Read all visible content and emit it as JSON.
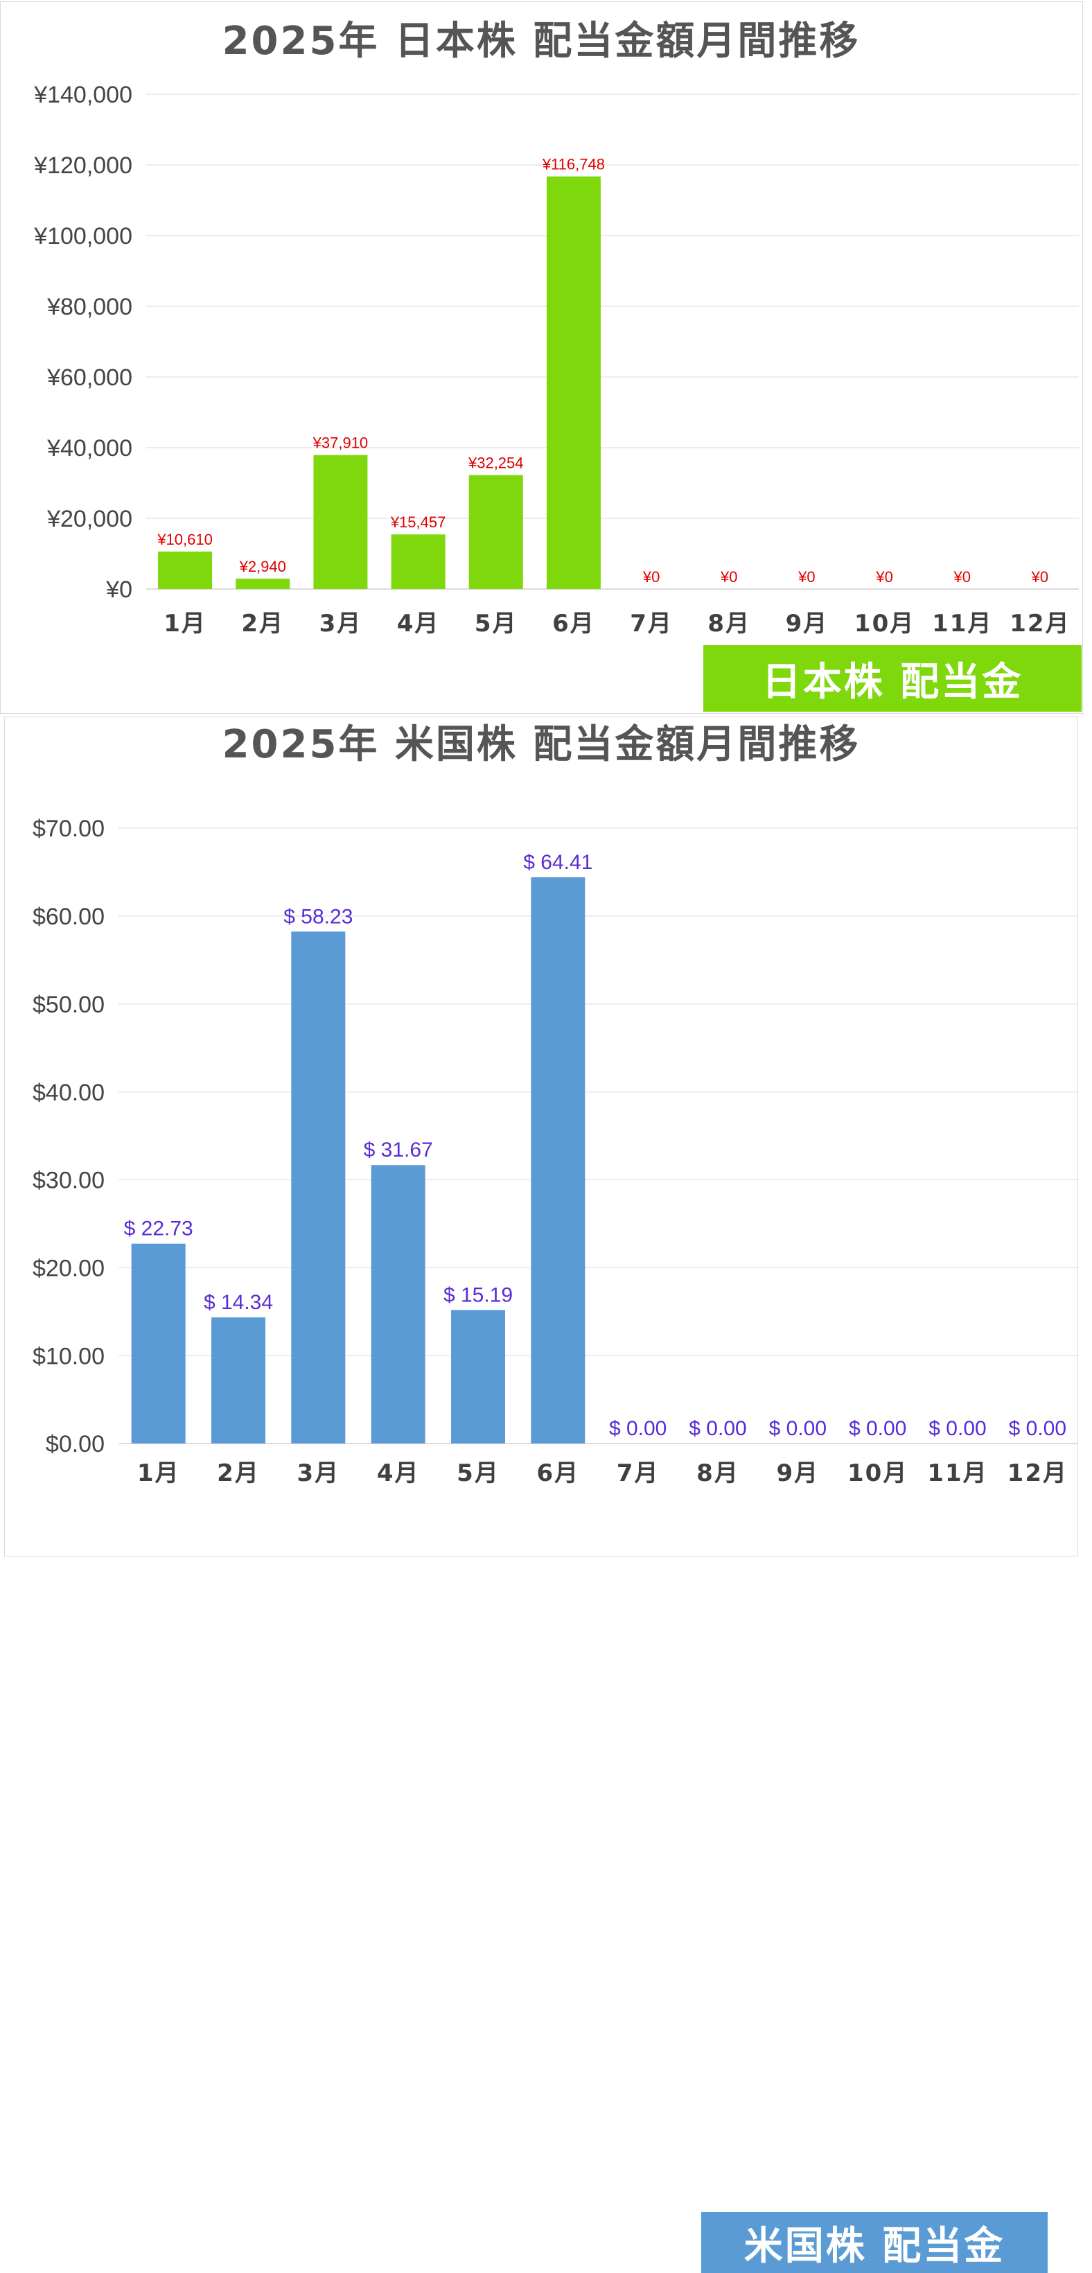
{
  "jp_chart": {
    "title": "2025年 日本株 配当金額月間推移",
    "banner": "日本株 配当金",
    "colors": {
      "bar": "#7ed80b",
      "label": "#e00000",
      "grid": "#e6e6e6"
    },
    "chart_data": {
      "type": "bar",
      "categories": [
        "1月",
        "2月",
        "3月",
        "4月",
        "5月",
        "6月",
        "7月",
        "8月",
        "9月",
        "10月",
        "11月",
        "12月"
      ],
      "values": [
        10610,
        2940,
        37910,
        15457,
        32254,
        116748,
        0,
        0,
        0,
        0,
        0,
        0
      ],
      "data_labels": [
        "¥10,610",
        "¥2,940",
        "¥37,910",
        "¥15,457",
        "¥32,254",
        "¥116,748",
        "¥0",
        "¥0",
        "¥0",
        "¥0",
        "¥0",
        "¥0"
      ],
      "yticks": [
        0,
        20000,
        40000,
        60000,
        80000,
        100000,
        120000,
        140000
      ],
      "ytick_labels": [
        "¥0",
        "¥20,000",
        "¥40,000",
        "¥60,000",
        "¥80,000",
        "¥100,000",
        "¥120,000",
        "¥140,000"
      ],
      "ylim": [
        0,
        140000
      ],
      "grid": true
    }
  },
  "us_chart": {
    "title": "2025年 米国株 配当金額月間推移",
    "banner": "米国株 配当金",
    "colors": {
      "bar": "#5b9bd5",
      "label": "#5a2bd6",
      "grid": "#e6e6e6"
    },
    "chart_data": {
      "type": "bar",
      "categories": [
        "1月",
        "2月",
        "3月",
        "4月",
        "5月",
        "6月",
        "7月",
        "8月",
        "9月",
        "10月",
        "11月",
        "12月"
      ],
      "values": [
        22.73,
        14.34,
        58.23,
        31.67,
        15.19,
        64.41,
        0,
        0,
        0,
        0,
        0,
        0
      ],
      "data_labels": [
        "$ 22.73",
        "$ 14.34",
        "$ 58.23",
        "$ 31.67",
        "$ 15.19",
        "$ 64.41",
        "$ 0.00",
        "$ 0.00",
        "$ 0.00",
        "$ 0.00",
        "$ 0.00",
        "$ 0.00"
      ],
      "yticks": [
        0,
        10,
        20,
        30,
        40,
        50,
        60,
        70
      ],
      "ytick_labels": [
        "$0.00",
        "$10.00",
        "$20.00",
        "$30.00",
        "$40.00",
        "$50.00",
        "$60.00",
        "$70.00"
      ],
      "ylim": [
        0,
        70
      ],
      "grid": true
    }
  }
}
